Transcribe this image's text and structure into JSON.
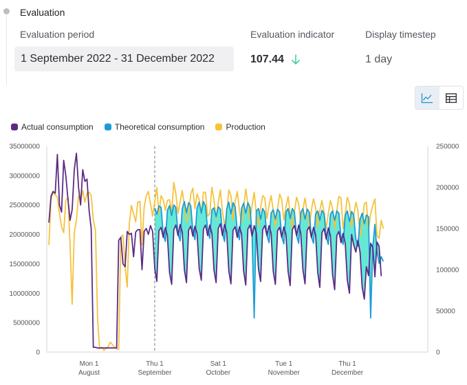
{
  "section": {
    "title": "Evaluation"
  },
  "fields": {
    "period_label": "Evaluation period",
    "period_value": "1 September 2022 - 31 December 2022",
    "indicator_label": "Evaluation indicator",
    "indicator_value": "107.44",
    "indicator_trend_icon": "arrow-down-icon",
    "timestep_label": "Display timestep",
    "timestep_value": "1 day"
  },
  "view_toggle": {
    "items": [
      {
        "name": "line-chart-icon",
        "active": true
      },
      {
        "name": "table-icon",
        "active": false
      }
    ]
  },
  "colors": {
    "actual": "#5b2a86",
    "theoretical": "#1a9bd7",
    "production": "#f5c23a",
    "fill_above": "#33e0c8",
    "fill_below": "#f4a8a0",
    "indicator_arrow": "#46c9a8"
  },
  "chart_data": {
    "type": "line",
    "legend": [
      "Actual consumption",
      "Theoretical consumption",
      "Production"
    ],
    "legend_position": "top-left",
    "x_axis": {
      "range": [
        "2022-07-12",
        "2023-01-08"
      ],
      "ticks": [
        {
          "date": "2022-08-01",
          "line1": "Mon 1",
          "line2": "August"
        },
        {
          "date": "2022-09-01",
          "line1": "Thu 1",
          "line2": "September"
        },
        {
          "date": "2022-10-01",
          "line1": "Sat 1",
          "line2": "October"
        },
        {
          "date": "2022-11-01",
          "line1": "Tue 1",
          "line2": "November"
        },
        {
          "date": "2022-12-01",
          "line1": "Thu 1",
          "line2": "December"
        }
      ]
    },
    "y_left": {
      "min": 0,
      "max": 35000000,
      "ticks": [
        "0",
        "5000000",
        "10000000",
        "15000000",
        "20000000",
        "25000000",
        "30000000",
        "35000000"
      ]
    },
    "y_right": {
      "min": 0,
      "max": 250000,
      "ticks": [
        "0",
        "50000",
        "100000",
        "150000",
        "200000",
        "250000"
      ]
    },
    "evaluation_start_marker": "2022-09-01",
    "series": [
      {
        "name": "Actual consumption",
        "axis": "left",
        "start": "2022-07-13",
        "values": [
          22000000,
          26500000,
          27300000,
          27000000,
          33600000,
          25000000,
          23800000,
          32600000,
          30000000,
          26000000,
          22400000,
          24200000,
          31000000,
          33800000,
          28000000,
          25000000,
          31000000,
          29000000,
          29400000,
          24000000,
          21000000,
          800000,
          800000,
          700000,
          700000,
          700000,
          700000,
          700000,
          700000,
          700000,
          700000,
          700000,
          700000,
          19000000,
          19500000,
          15000000,
          14500000,
          20500000,
          20000000,
          20200000,
          16200000,
          20400000,
          20800000,
          20800000,
          14000000,
          20500000,
          21000000,
          20000000,
          21500000,
          20500000,
          14200000,
          12000000,
          20600000,
          21200000,
          19500000,
          21200000,
          19800000,
          13500000,
          11500000,
          20800000,
          21600000,
          19800000,
          21700000,
          20400000,
          14000000,
          11800000,
          20700000,
          21400000,
          19700000,
          21400000,
          20200000,
          14200000,
          12200000,
          20900000,
          21600000,
          19800000,
          21600000,
          20200000,
          14000000,
          11800000,
          21000000,
          21800000,
          19800000,
          21700000,
          20400000,
          13800000,
          11600000,
          20700000,
          21300000,
          19500000,
          21300000,
          20100000,
          13800000,
          11400000,
          20900000,
          21600000,
          19700000,
          21500000,
          20300000,
          14200000,
          12000000,
          20800000,
          21500000,
          19800000,
          21500000,
          20200000,
          13700000,
          11500000,
          20600000,
          21200000,
          19500000,
          21300000,
          20000000,
          13700000,
          11300000,
          20800000,
          21500000,
          19800000,
          21600000,
          20200000,
          14000000,
          11600000,
          20700000,
          21300000,
          19500000,
          21200000,
          20000000,
          13500000,
          11000000,
          20300000,
          21000000,
          19200000,
          21100000,
          19800000,
          13200000,
          10600000,
          19800000,
          20500000,
          18600000,
          20200000,
          18400000,
          12200000,
          10000000,
          20000000,
          18200000,
          17000000,
          19000000,
          17000000,
          11000000,
          9000000,
          14500000,
          13000000,
          18500000,
          17800000,
          12800000,
          18700000,
          18000000,
          12900000
        ]
      },
      {
        "name": "Theoretical consumption",
        "axis": "left",
        "start": "2022-09-01",
        "values": [
          24500000,
          23400000,
          24800000,
          24600000,
          20100000,
          18800000,
          24100000,
          24900000,
          23200000,
          25000000,
          24600000,
          20200000,
          18900000,
          24400000,
          25600000,
          23700000,
          25400000,
          24900000,
          20600000,
          19100000,
          24500000,
          25500000,
          23600000,
          25600000,
          24800000,
          20800000,
          19300000,
          24200000,
          24500000,
          23000000,
          24700000,
          24300000,
          20200000,
          18800000,
          24300000,
          25500000,
          23500000,
          25400000,
          24700000,
          20500000,
          19100000,
          24400000,
          25300000,
          23600000,
          25400000,
          24600000,
          20100000,
          5800000,
          24000000,
          24400000,
          22600000,
          24400000,
          23800000,
          19800000,
          18600000,
          23600000,
          24200000,
          22600000,
          24300000,
          23800000,
          19600000,
          18400000,
          23800000,
          24400000,
          22700000,
          24400000,
          23800000,
          19800000,
          18500000,
          23700000,
          24400000,
          22600000,
          24300000,
          23800000,
          19600000,
          18500000,
          23500000,
          24000000,
          22400000,
          24100000,
          23500000,
          19600000,
          18300000,
          23400000,
          24000000,
          22400000,
          24000000,
          23600000,
          19500000,
          18300000,
          23300000,
          24000000,
          22200000,
          23900000,
          23300000,
          19200000,
          18000000,
          22600000,
          23600000,
          21800000,
          23300000,
          23000000,
          5800000,
          17800000,
          21700000,
          17200000,
          15100000,
          16200000,
          15400000
        ]
      },
      {
        "name": "Production",
        "axis": "right",
        "start": "2022-07-13",
        "values": [
          130000,
          186000,
          194000,
          191000,
          188000,
          168000,
          152000,
          145000,
          184000,
          188000,
          130000,
          58000,
          145000,
          160000,
          190000,
          184000,
          196000,
          182000,
          193000,
          194000,
          190000,
          160000,
          148000,
          40000,
          4000,
          6000,
          2000,
          4000,
          7000,
          12000,
          9000,
          6000,
          4000,
          3500,
          140000,
          142000,
          104000,
          79000,
          156000,
          178000,
          168000,
          158000,
          182000,
          183000,
          130000,
          176000,
          190000,
          195000,
          180000,
          165000,
          183000,
          200000,
          168000,
          190000,
          185000,
          172000,
          184000,
          185000,
          169000,
          206000,
          192000,
          168000,
          182000,
          196000,
          178000,
          158000,
          164000,
          192000,
          199000,
          174000,
          192000,
          185000,
          169000,
          194000,
          194000,
          165000,
          168000,
          200000,
          185000,
          162000,
          181000,
          197000,
          170000,
          154000,
          168000,
          197000,
          190000,
          160000,
          183000,
          195000,
          172000,
          156000,
          175000,
          198000,
          180000,
          160000,
          178000,
          194000,
          168000,
          153000,
          175000,
          190000,
          187000,
          162000,
          178000,
          190000,
          172000,
          152000,
          173000,
          192000,
          185000,
          160000,
          176000,
          189000,
          168000,
          150000,
          170000,
          188000,
          180000,
          158000,
          173000,
          187000,
          170000,
          150000,
          172000,
          186000,
          175000,
          152000,
          172000,
          184000,
          170000,
          150000,
          168000,
          184000,
          175000,
          150000,
          172000,
          189000,
          187000,
          150000,
          168000,
          188000,
          180000,
          152000,
          166000,
          182000,
          172000,
          140000,
          154000,
          180000,
          182000,
          148000,
          168000,
          178000,
          186000,
          142000,
          138000,
          160000,
          150000
        ]
      }
    ]
  }
}
